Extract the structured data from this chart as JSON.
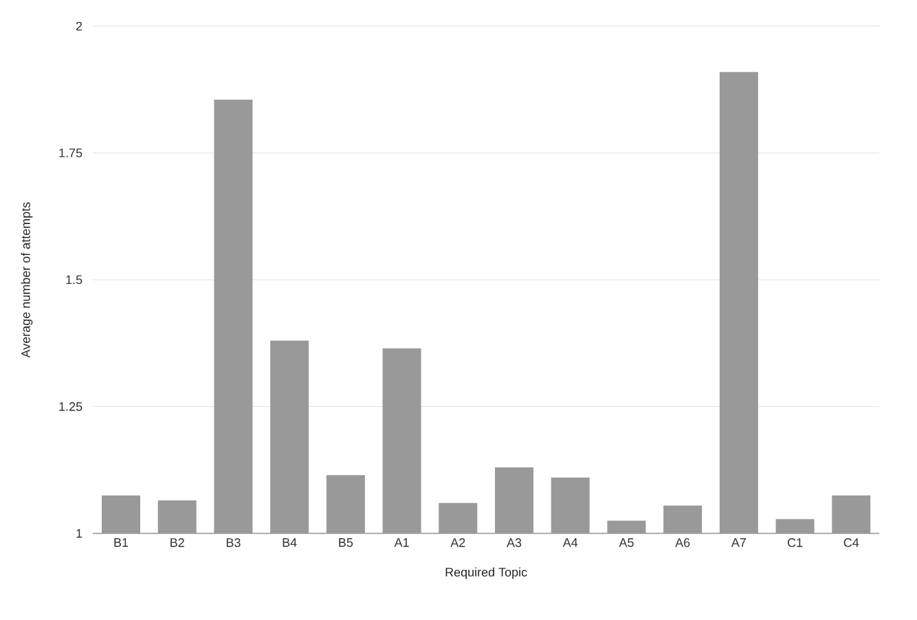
{
  "chart_data": {
    "type": "bar",
    "xlabel": "Required Topic",
    "ylabel": "Average number of attempts",
    "categories": [
      "B1",
      "B2",
      "B3",
      "B4",
      "B5",
      "A1",
      "A2",
      "A3",
      "A4",
      "A5",
      "A6",
      "A7",
      "C1",
      "C4"
    ],
    "values": [
      1.075,
      1.065,
      1.855,
      1.38,
      1.115,
      1.365,
      1.06,
      1.13,
      1.11,
      1.025,
      1.055,
      1.91,
      1.028,
      1.075
    ],
    "color": "#999999",
    "ylim": [
      1,
      2
    ],
    "yticks": [
      1,
      1.25,
      1.5,
      1.75,
      2
    ],
    "grid": "y"
  }
}
